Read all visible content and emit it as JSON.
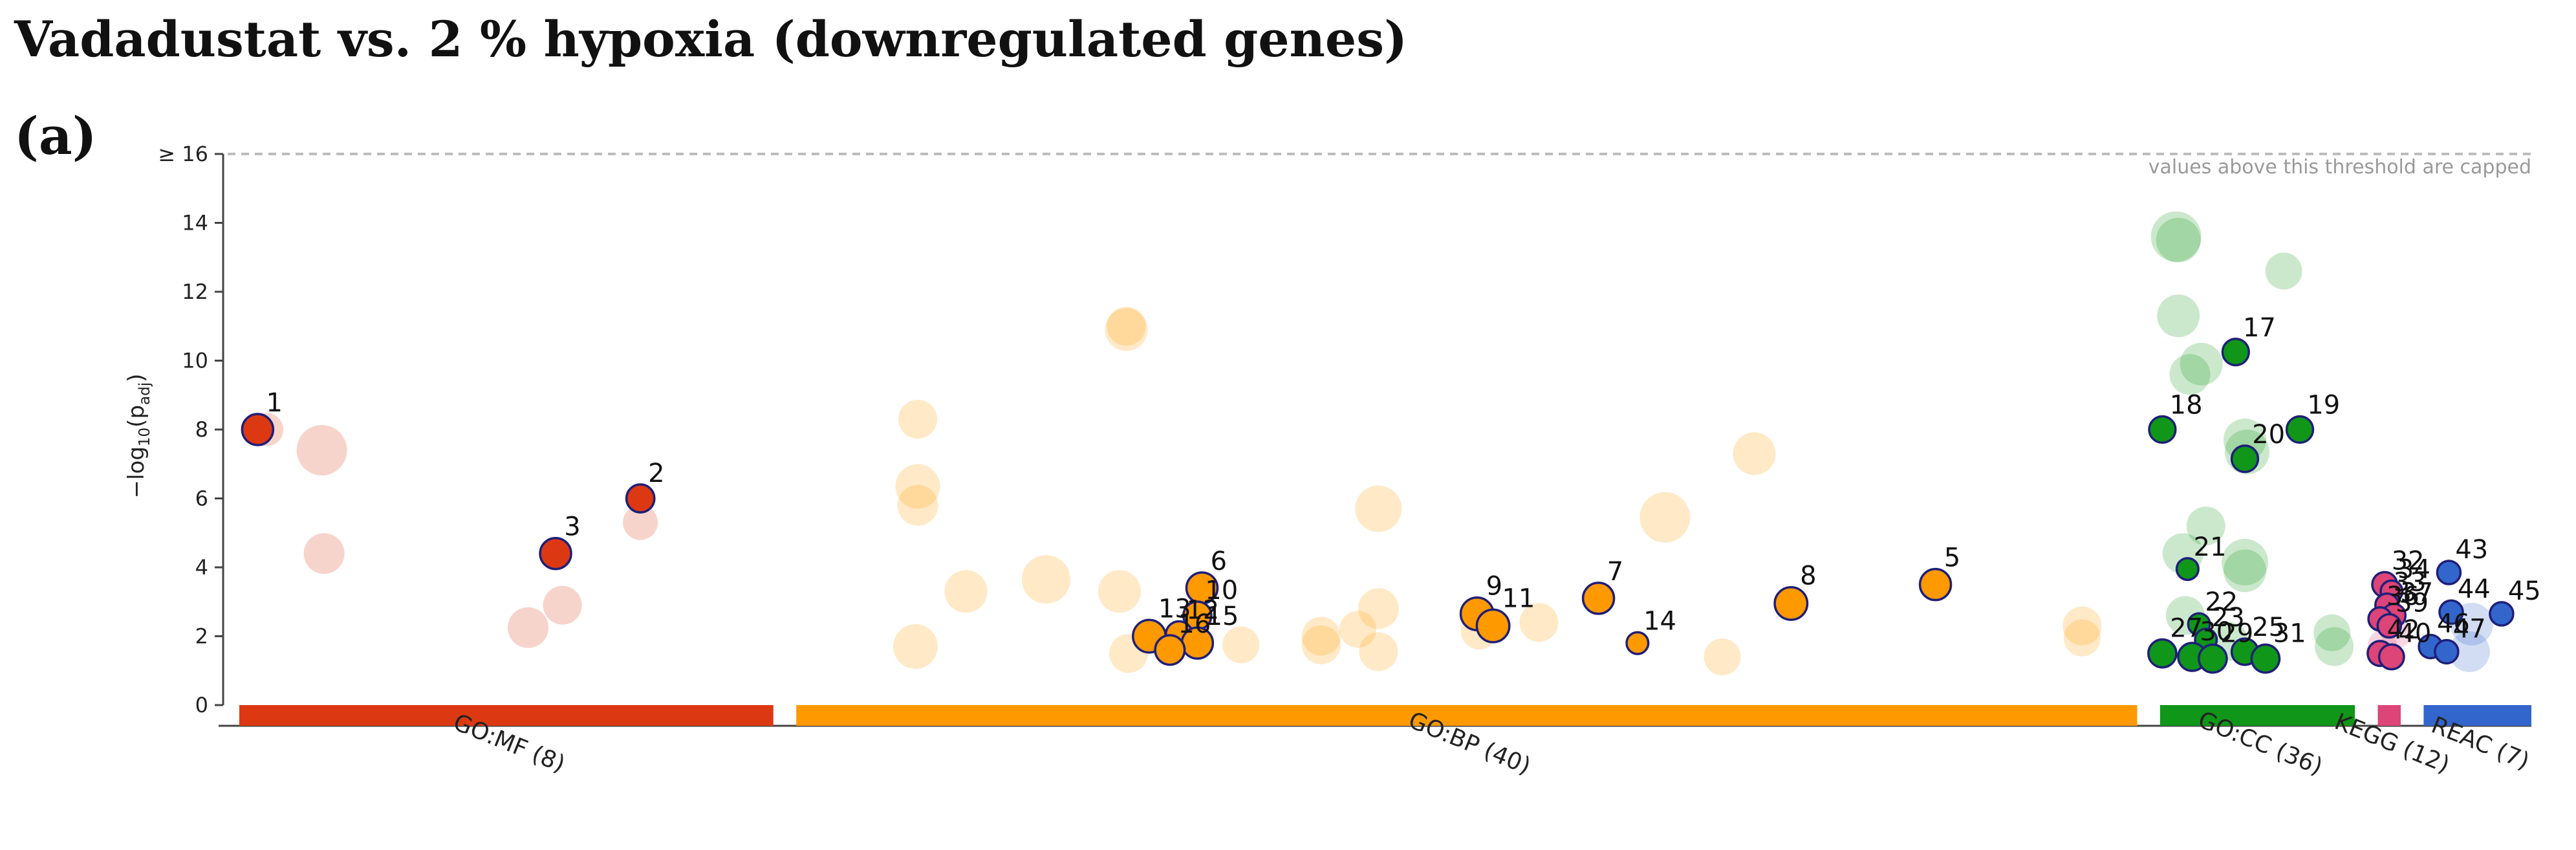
{
  "title": "Vadadustat vs. 2 % hypoxia (downregulated genes)",
  "panel_label": "(a)",
  "chart_data": {
    "type": "scatter",
    "subtype": "manhattan",
    "ylabel_main": "−log",
    "ylabel_sub10": "10",
    "ylabel_open": "(p",
    "ylabel_sub": "adj",
    "ylabel_close": ")",
    "ylim": [
      0,
      16
    ],
    "y_ticks": [
      {
        "value": 0,
        "label": "0"
      },
      {
        "value": 2,
        "label": "2"
      },
      {
        "value": 4,
        "label": "4"
      },
      {
        "value": 6,
        "label": "6"
      },
      {
        "value": 8,
        "label": "8"
      },
      {
        "value": 10,
        "label": "10"
      },
      {
        "value": 12,
        "label": "12"
      },
      {
        "value": 14,
        "label": "14"
      },
      {
        "value": 16,
        "label": "≥ 16"
      }
    ],
    "cap_note": "values above this threshold are capped",
    "sources": [
      {
        "name": "GO:MF",
        "label": "GO:MF (8)",
        "color": "#dc3912",
        "range": [
          0,
          233
        ]
      },
      {
        "name": "GO:BP",
        "label": "GO:BP (40)",
        "color": "#ff9900",
        "range": [
          243,
          828
        ]
      },
      {
        "name": "GO:CC",
        "label": "GO:CC (36)",
        "color": "#109618",
        "range": [
          838,
          923
        ]
      },
      {
        "name": "KEGG",
        "label": "KEGG (12)",
        "color": "#dd4477",
        "range": [
          933,
          943
        ]
      },
      {
        "name": "REAC",
        "label": "REAC (7)",
        "color": "#3366cc",
        "range": [
          953,
          1000
        ]
      }
    ],
    "highlighted": [
      {
        "id": "1",
        "source": "GO:MF",
        "x": 8,
        "y": 8.0,
        "size": 1.0
      },
      {
        "id": "2",
        "source": "GO:MF",
        "x": 175,
        "y": 6.0,
        "size": 0.9
      },
      {
        "id": "3",
        "source": "GO:MF",
        "x": 138,
        "y": 4.4,
        "size": 1.0
      },
      {
        "id": "5",
        "source": "GO:BP",
        "x": 740,
        "y": 3.5,
        "size": 1.0
      },
      {
        "id": "6",
        "source": "GO:BP",
        "x": 420,
        "y": 3.4,
        "size": 1.0
      },
      {
        "id": "7",
        "source": "GO:BP",
        "x": 593,
        "y": 3.1,
        "size": 1.0
      },
      {
        "id": "8",
        "source": "GO:BP",
        "x": 677,
        "y": 2.95,
        "size": 1.05
      },
      {
        "id": "9",
        "source": "GO:BP",
        "x": 540,
        "y": 2.65,
        "size": 1.05
      },
      {
        "id": "10",
        "source": "GO:BP",
        "x": 418,
        "y": 2.6,
        "size": 0.9
      },
      {
        "id": "11",
        "source": "GO:BP",
        "x": 547,
        "y": 2.3,
        "size": 1.05
      },
      {
        "id": "12",
        "source": "GO:BP",
        "x": 410,
        "y": 2.05,
        "size": 0.85
      },
      {
        "id": "13",
        "source": "GO:BP",
        "x": 397,
        "y": 2.0,
        "size": 1.05
      },
      {
        "id": "14",
        "source": "GO:BP",
        "x": 610,
        "y": 1.8,
        "size": 0.7
      },
      {
        "id": "15",
        "source": "GO:BP",
        "x": 418,
        "y": 1.8,
        "size": 1.0
      },
      {
        "id": "16",
        "source": "GO:BP",
        "x": 406,
        "y": 1.6,
        "size": 0.95
      },
      {
        "id": "17",
        "source": "GO:CC",
        "x": 871,
        "y": 10.25,
        "size": 0.85
      },
      {
        "id": "18",
        "source": "GO:CC",
        "x": 839,
        "y": 8.0,
        "size": 0.85
      },
      {
        "id": "19",
        "source": "GO:CC",
        "x": 899,
        "y": 8.0,
        "size": 0.85
      },
      {
        "id": "20",
        "source": "GO:CC",
        "x": 875,
        "y": 7.15,
        "size": 0.85
      },
      {
        "id": "21",
        "source": "GO:CC",
        "x": 850,
        "y": 3.95,
        "size": 0.7
      },
      {
        "id": "22",
        "source": "GO:CC",
        "x": 855,
        "y": 2.35,
        "size": 0.7
      },
      {
        "id": "23",
        "source": "GO:CC",
        "x": 858,
        "y": 1.9,
        "size": 0.7
      },
      {
        "id": "25",
        "source": "GO:CC",
        "x": 875,
        "y": 1.55,
        "size": 0.85
      },
      {
        "id": "27",
        "source": "GO:CC",
        "x": 839,
        "y": 1.5,
        "size": 0.9
      },
      {
        "id": "30",
        "source": "GO:CC",
        "x": 852,
        "y": 1.4,
        "size": 0.9
      },
      {
        "id": "29",
        "source": "GO:CC",
        "x": 861,
        "y": 1.35,
        "size": 0.9
      },
      {
        "id": "31",
        "source": "GO:CC",
        "x": 884,
        "y": 1.35,
        "size": 0.9
      },
      {
        "id": "32",
        "source": "KEGG",
        "x": 936,
        "y": 3.5,
        "size": 0.8
      },
      {
        "id": "34",
        "source": "KEGG",
        "x": 939,
        "y": 3.3,
        "size": 0.7
      },
      {
        "id": "33",
        "source": "KEGG",
        "x": 937,
        "y": 2.9,
        "size": 0.75
      },
      {
        "id": "37",
        "source": "KEGG",
        "x": 940,
        "y": 2.6,
        "size": 0.75
      },
      {
        "id": "36",
        "source": "KEGG",
        "x": 934,
        "y": 2.5,
        "size": 0.75
      },
      {
        "id": "39",
        "source": "KEGG",
        "x": 938,
        "y": 2.3,
        "size": 0.75
      },
      {
        "id": "42",
        "source": "KEGG",
        "x": 934,
        "y": 1.5,
        "size": 0.8
      },
      {
        "id": "40",
        "source": "KEGG",
        "x": 939,
        "y": 1.4,
        "size": 0.8
      },
      {
        "id": "43",
        "source": "REAC",
        "x": 964,
        "y": 3.85,
        "size": 0.75
      },
      {
        "id": "44",
        "source": "REAC",
        "x": 965,
        "y": 2.7,
        "size": 0.75
      },
      {
        "id": "45",
        "source": "REAC",
        "x": 987,
        "y": 2.65,
        "size": 0.75
      },
      {
        "id": "46",
        "source": "REAC",
        "x": 956,
        "y": 1.7,
        "size": 0.75
      },
      {
        "id": "47",
        "source": "REAC",
        "x": 963,
        "y": 1.55,
        "size": 0.75
      }
    ],
    "background": [
      {
        "source": "GO:MF",
        "x": 36,
        "y": 7.4,
        "size": 1.3
      },
      {
        "source": "GO:MF",
        "x": 37,
        "y": 4.4,
        "size": 1.05
      },
      {
        "source": "GO:MF",
        "x": 175,
        "y": 5.3,
        "size": 0.9
      },
      {
        "source": "GO:MF",
        "x": 141,
        "y": 2.9,
        "size": 1.0
      },
      {
        "source": "GO:MF",
        "x": 126,
        "y": 2.25,
        "size": 1.05
      },
      {
        "source": "GO:MF",
        "x": 12,
        "y": 8.0,
        "size": 0.85
      },
      {
        "source": "GO:BP",
        "x": 296,
        "y": 8.3,
        "size": 1.0
      },
      {
        "source": "GO:BP",
        "x": 296,
        "y": 6.35,
        "size": 1.15
      },
      {
        "source": "GO:BP",
        "x": 296,
        "y": 5.8,
        "size": 1.05
      },
      {
        "source": "GO:BP",
        "x": 317,
        "y": 3.3,
        "size": 1.1
      },
      {
        "source": "GO:BP",
        "x": 352,
        "y": 3.65,
        "size": 1.25
      },
      {
        "source": "GO:BP",
        "x": 295,
        "y": 1.7,
        "size": 1.15
      },
      {
        "source": "GO:BP",
        "x": 387,
        "y": 11.0,
        "size": 1.0
      },
      {
        "source": "GO:BP",
        "x": 387,
        "y": 10.9,
        "size": 1.1
      },
      {
        "source": "GO:BP",
        "x": 384,
        "y": 3.3,
        "size": 1.1
      },
      {
        "source": "GO:BP",
        "x": 388,
        "y": 1.5,
        "size": 1.0
      },
      {
        "source": "GO:BP",
        "x": 437,
        "y": 1.75,
        "size": 0.95
      },
      {
        "source": "GO:BP",
        "x": 472,
        "y": 1.75,
        "size": 1.0
      },
      {
        "source": "GO:BP",
        "x": 472,
        "y": 2.0,
        "size": 1.0
      },
      {
        "source": "GO:BP",
        "x": 488,
        "y": 2.2,
        "size": 0.95
      },
      {
        "source": "GO:BP",
        "x": 497,
        "y": 5.7,
        "size": 1.2
      },
      {
        "source": "GO:BP",
        "x": 497,
        "y": 2.8,
        "size": 1.05
      },
      {
        "source": "GO:BP",
        "x": 497,
        "y": 1.55,
        "size": 1.0
      },
      {
        "source": "GO:BP",
        "x": 541,
        "y": 2.15,
        "size": 0.95
      },
      {
        "source": "GO:BP",
        "x": 567,
        "y": 2.4,
        "size": 1.0
      },
      {
        "source": "GO:BP",
        "x": 622,
        "y": 5.45,
        "size": 1.3
      },
      {
        "source": "GO:BP",
        "x": 661,
        "y": 7.3,
        "size": 1.1
      },
      {
        "source": "GO:BP",
        "x": 647,
        "y": 1.4,
        "size": 0.95
      },
      {
        "source": "GO:BP",
        "x": 804,
        "y": 2.3,
        "size": 1.0
      },
      {
        "source": "GO:BP",
        "x": 804,
        "y": 1.95,
        "size": 0.95
      },
      {
        "source": "GO:CC",
        "x": 845,
        "y": 13.6,
        "size": 1.3
      },
      {
        "source": "GO:CC",
        "x": 846,
        "y": 13.5,
        "size": 1.15
      },
      {
        "source": "GO:CC",
        "x": 892,
        "y": 12.6,
        "size": 0.95
      },
      {
        "source": "GO:CC",
        "x": 846,
        "y": 11.3,
        "size": 1.1
      },
      {
        "source": "GO:CC",
        "x": 856,
        "y": 9.9,
        "size": 1.1
      },
      {
        "source": "GO:CC",
        "x": 851,
        "y": 9.6,
        "size": 1.05
      },
      {
        "source": "GO:CC",
        "x": 875,
        "y": 7.7,
        "size": 1.1
      },
      {
        "source": "GO:CC",
        "x": 876,
        "y": 7.35,
        "size": 1.15
      },
      {
        "source": "GO:CC",
        "x": 858,
        "y": 5.2,
        "size": 1.0
      },
      {
        "source": "GO:CC",
        "x": 875,
        "y": 4.15,
        "size": 1.2
      },
      {
        "source": "GO:CC",
        "x": 875,
        "y": 3.9,
        "size": 1.1
      },
      {
        "source": "GO:CC",
        "x": 848,
        "y": 4.4,
        "size": 1.05
      },
      {
        "source": "GO:CC",
        "x": 849,
        "y": 2.6,
        "size": 1.0
      },
      {
        "source": "GO:CC",
        "x": 913,
        "y": 2.1,
        "size": 0.95
      },
      {
        "source": "GO:CC",
        "x": 914,
        "y": 1.7,
        "size": 1.0
      },
      {
        "source": "GO:CC",
        "x": 868,
        "y": 1.85,
        "size": 1.0
      },
      {
        "source": "KEGG",
        "x": 941,
        "y": 2.1,
        "size": 0.8
      },
      {
        "source": "KEGG",
        "x": 935,
        "y": 1.75,
        "size": 0.75
      },
      {
        "source": "REAC",
        "x": 974,
        "y": 2.35,
        "size": 1.1
      },
      {
        "source": "REAC",
        "x": 973,
        "y": 1.55,
        "size": 1.05
      }
    ]
  }
}
